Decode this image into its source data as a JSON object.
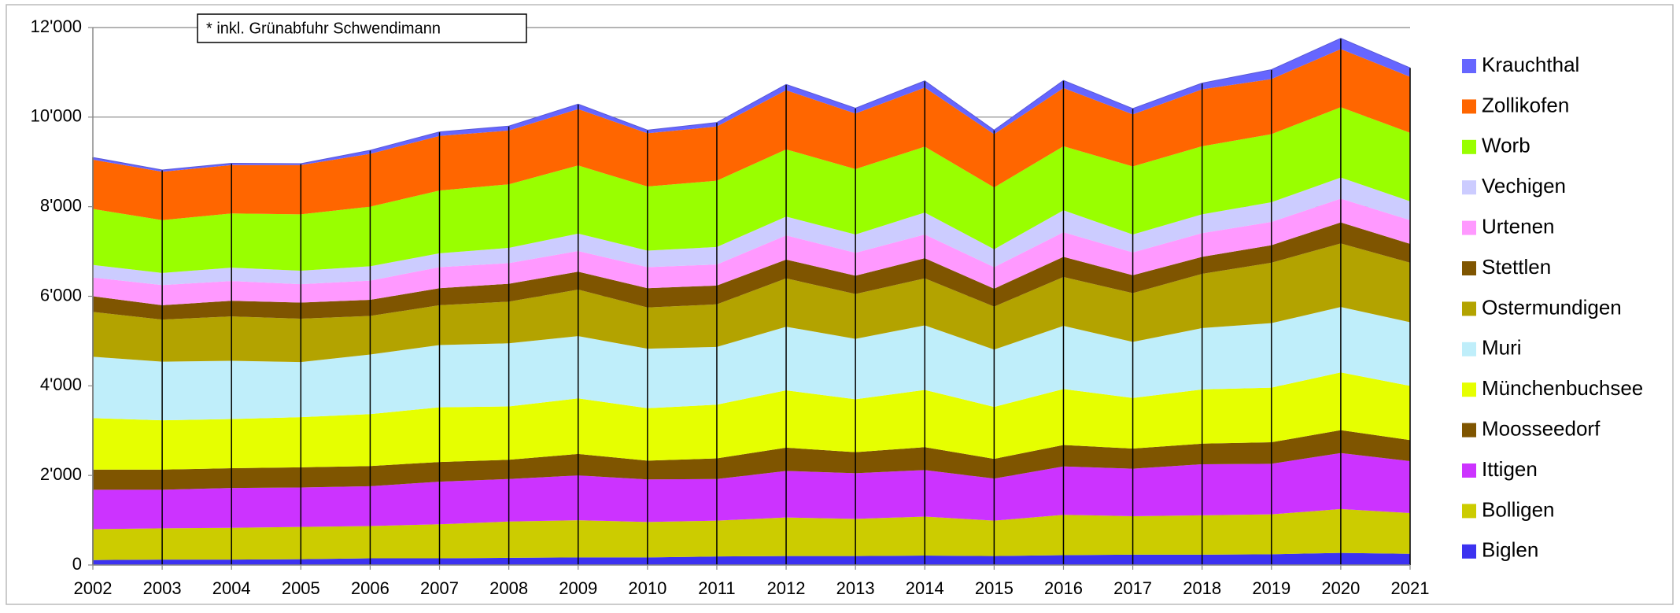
{
  "chart_data": {
    "type": "area",
    "stacked": true,
    "annotation": "* inkl. Grünabfuhr Schwendimann",
    "categories": [
      "2002",
      "2003",
      "2004",
      "2005",
      "2006",
      "2007",
      "2008",
      "2009",
      "2010",
      "2011",
      "2012",
      "2013",
      "2014",
      "2015",
      "2016",
      "2017",
      "2018",
      "2019",
      "2020",
      "2021"
    ],
    "ylim": [
      0,
      12000
    ],
    "yticks": [
      0,
      {
        "value": 2000,
        "label": "2'000"
      },
      {
        "value": 4000,
        "label": "4'000"
      },
      {
        "value": 6000,
        "label": "6'000"
      },
      {
        "value": 8000,
        "label": "8'000"
      },
      {
        "value": 10000,
        "label": "10'000"
      },
      {
        "value": 12000,
        "label": "12'000"
      }
    ],
    "grid": true,
    "legend": "right",
    "series": [
      {
        "name": "Biglen",
        "color": "#3c32f0",
        "values": [
          110,
          120,
          120,
          130,
          150,
          150,
          160,
          170,
          170,
          190,
          200,
          200,
          210,
          200,
          220,
          230,
          230,
          240,
          270,
          250
        ]
      },
      {
        "name": "Bolligen",
        "color": "#cccc00",
        "values": [
          690,
          700,
          710,
          720,
          720,
          760,
          810,
          830,
          790,
          800,
          860,
          830,
          870,
          790,
          900,
          860,
          880,
          890,
          980,
          910
        ]
      },
      {
        "name": "Ittigen",
        "color": "#cc33ff",
        "values": [
          880,
          860,
          890,
          880,
          890,
          950,
          950,
          1000,
          950,
          930,
          1040,
          1020,
          1040,
          940,
          1080,
          1060,
          1140,
          1130,
          1250,
          1160
        ]
      },
      {
        "name": "Moosseedorf",
        "color": "#7f5500",
        "values": [
          450,
          450,
          440,
          450,
          450,
          440,
          430,
          480,
          420,
          460,
          520,
          470,
          510,
          440,
          480,
          450,
          460,
          480,
          510,
          470
        ]
      },
      {
        "name": "Münchenbuchsee",
        "color": "#e6ff00",
        "values": [
          1150,
          1100,
          1100,
          1120,
          1160,
          1220,
          1190,
          1240,
          1170,
          1200,
          1280,
          1180,
          1280,
          1160,
          1250,
          1130,
          1210,
          1220,
          1290,
          1210
        ]
      },
      {
        "name": "Muri",
        "color": "#bfeefa",
        "values": [
          1370,
          1310,
          1300,
          1230,
          1330,
          1390,
          1410,
          1390,
          1330,
          1290,
          1420,
          1350,
          1440,
          1280,
          1410,
          1250,
          1370,
          1440,
          1460,
          1420
        ]
      },
      {
        "name": "Ostermundigen",
        "color": "#b3a300",
        "values": [
          1000,
          940,
          990,
          970,
          860,
          890,
          930,
          1040,
          920,
          950,
          1080,
          1000,
          1050,
          960,
          1090,
          1090,
          1210,
          1350,
          1420,
          1330
        ]
      },
      {
        "name": "Stettlen",
        "color": "#7f5500",
        "values": [
          350,
          320,
          350,
          360,
          360,
          380,
          400,
          400,
          430,
          420,
          420,
          410,
          450,
          400,
          450,
          400,
          380,
          390,
          470,
          420
        ]
      },
      {
        "name": "Urtenen",
        "color": "#ff99ff",
        "values": [
          420,
          450,
          440,
          410,
          430,
          470,
          460,
          460,
          470,
          470,
          540,
          510,
          530,
          480,
          550,
          510,
          530,
          520,
          530,
          530
        ]
      },
      {
        "name": "Vechigen",
        "color": "#ccccff",
        "values": [
          280,
          270,
          300,
          300,
          320,
          310,
          340,
          390,
          370,
          390,
          420,
          410,
          490,
          400,
          490,
          400,
          420,
          440,
          470,
          420
        ]
      },
      {
        "name": "Worb",
        "color": "#99ff00",
        "values": [
          1250,
          1180,
          1210,
          1260,
          1330,
          1400,
          1420,
          1520,
          1430,
          1480,
          1500,
          1460,
          1470,
          1380,
          1430,
          1520,
          1520,
          1520,
          1570,
          1530
        ]
      },
      {
        "name": "Zollikofen",
        "color": "#ff6600",
        "values": [
          1100,
          1080,
          1080,
          1100,
          1180,
          1220,
          1200,
          1260,
          1190,
          1210,
          1320,
          1240,
          1320,
          1190,
          1300,
          1160,
          1270,
          1230,
          1300,
          1250
        ]
      },
      {
        "name": "Krauchthal",
        "color": "#6666ff",
        "values": [
          50,
          40,
          40,
          30,
          80,
          90,
          100,
          110,
          70,
          90,
          130,
          120,
          150,
          90,
          170,
          130,
          140,
          210,
          240,
          200
        ]
      }
    ]
  }
}
